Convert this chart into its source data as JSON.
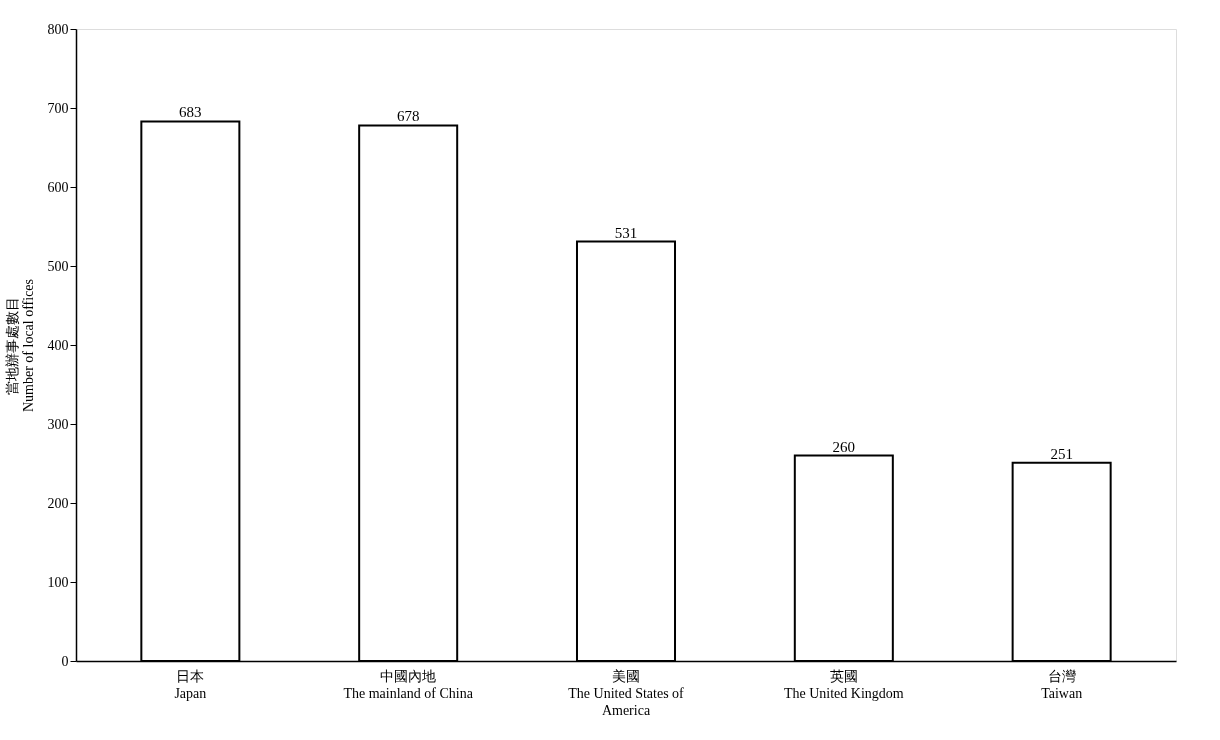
{
  "chart_data": {
    "type": "bar",
    "ylabel": "當地辦事處數目\nNumber of local offices",
    "categories": [
      "日本\nJapan",
      "中國內地\nThe mainland of China",
      "美國\nThe United States of\nAmerica",
      "英國\nThe United Kingdom",
      "台灣\nTaiwan"
    ],
    "values": [
      683,
      678,
      531,
      260,
      251
    ],
    "ylim": [
      0,
      800
    ],
    "yticks": [
      0,
      100,
      200,
      300,
      400,
      500,
      600,
      700,
      800
    ],
    "grid": false,
    "data_labels": true
  }
}
